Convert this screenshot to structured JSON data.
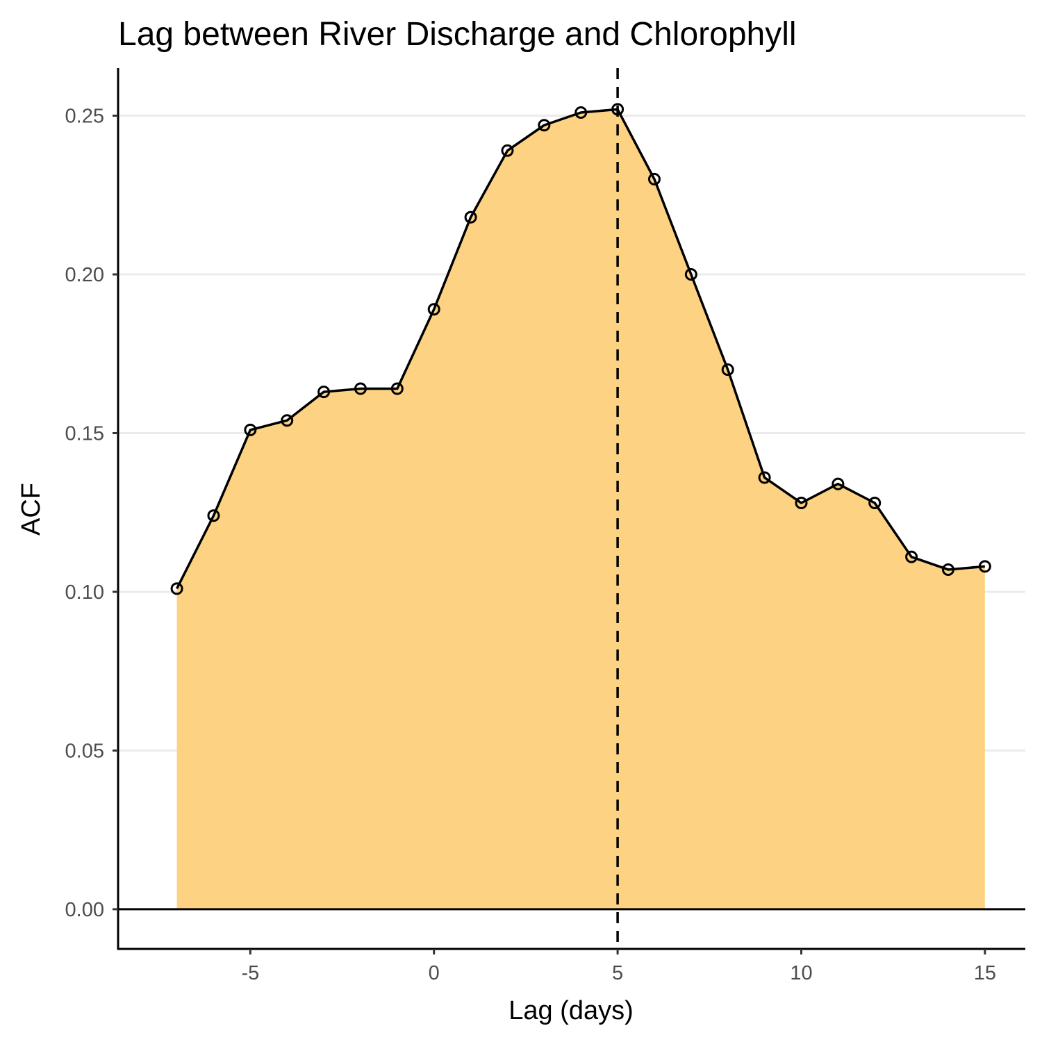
{
  "chart_data": {
    "type": "area",
    "title": "Lag between River Discharge and Chlorophyll",
    "xlabel": "Lag (days)",
    "ylabel": "ACF",
    "x": [
      -7,
      -6,
      -5,
      -4,
      -3,
      -2,
      -1,
      0,
      1,
      2,
      3,
      4,
      5,
      6,
      7,
      8,
      9,
      10,
      11,
      12,
      13,
      14,
      15
    ],
    "values": [
      0.101,
      0.124,
      0.151,
      0.154,
      0.163,
      0.164,
      0.164,
      0.189,
      0.218,
      0.239,
      0.247,
      0.251,
      0.252,
      0.23,
      0.2,
      0.17,
      0.136,
      0.128,
      0.134,
      0.128,
      0.111,
      0.107,
      0.108
    ],
    "xlim": [
      -8.6,
      16.1
    ],
    "ylim": [
      -0.0125,
      0.265
    ],
    "x_ticks": [
      -5,
      0,
      5,
      10,
      15
    ],
    "x_tick_labels": [
      "-5",
      "0",
      "5",
      "10",
      "15"
    ],
    "y_ticks": [
      0.0,
      0.05,
      0.1,
      0.15,
      0.2,
      0.25
    ],
    "y_tick_labels": [
      "0.00",
      "0.05",
      "0.10",
      "0.15",
      "0.20",
      "0.25"
    ],
    "vline_x": 5,
    "hline_y": 0,
    "grid": "horizontal-major",
    "legend": "none",
    "colors": {
      "fill": "#fdd17f",
      "line": "#000000",
      "grid": "#ebebeb",
      "vline": "#000000"
    }
  }
}
